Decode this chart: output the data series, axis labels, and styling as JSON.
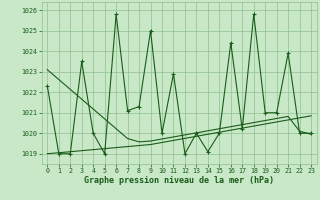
{
  "x": [
    0,
    1,
    2,
    3,
    4,
    5,
    6,
    7,
    8,
    9,
    10,
    11,
    12,
    13,
    14,
    15,
    16,
    17,
    18,
    19,
    20,
    21,
    22,
    23
  ],
  "y_main": [
    1022.3,
    1019.0,
    1019.0,
    1023.5,
    1020.0,
    1019.0,
    1025.8,
    1021.1,
    1021.3,
    1025.0,
    1020.0,
    1022.9,
    1019.0,
    1020.0,
    1019.1,
    1020.0,
    1024.4,
    1020.2,
    1025.8,
    1021.0,
    1021.0,
    1023.9,
    1020.0,
    1020.0
  ],
  "y_trend1": [
    1023.1,
    1022.62,
    1022.14,
    1021.66,
    1021.18,
    1020.7,
    1020.22,
    1019.74,
    1019.58,
    1019.62,
    1019.72,
    1019.82,
    1019.92,
    1020.02,
    1020.12,
    1020.22,
    1020.32,
    1020.42,
    1020.52,
    1020.62,
    1020.72,
    1020.82,
    1020.1,
    1019.95
  ],
  "y_trend2": [
    1019.0,
    1019.05,
    1019.1,
    1019.15,
    1019.2,
    1019.25,
    1019.3,
    1019.35,
    1019.4,
    1019.45,
    1019.55,
    1019.65,
    1019.75,
    1019.85,
    1019.95,
    1020.05,
    1020.15,
    1020.25,
    1020.35,
    1020.45,
    1020.55,
    1020.65,
    1020.75,
    1020.85
  ],
  "bg_color": "#c8e8c8",
  "grid_color": "#90c090",
  "line_color": "#1a5c1a",
  "title": "Graphe pression niveau de la mer (hPa)",
  "ylim": [
    1018.5,
    1026.4
  ],
  "xlim": [
    -0.5,
    23.5
  ],
  "yticks": [
    1019,
    1020,
    1021,
    1022,
    1023,
    1024,
    1025,
    1026
  ],
  "xticks": [
    0,
    1,
    2,
    3,
    4,
    5,
    6,
    7,
    8,
    9,
    10,
    11,
    12,
    13,
    14,
    15,
    16,
    17,
    18,
    19,
    20,
    21,
    22,
    23
  ],
  "xlabel_fontsize": 6.0,
  "tick_fontsize": 4.8
}
